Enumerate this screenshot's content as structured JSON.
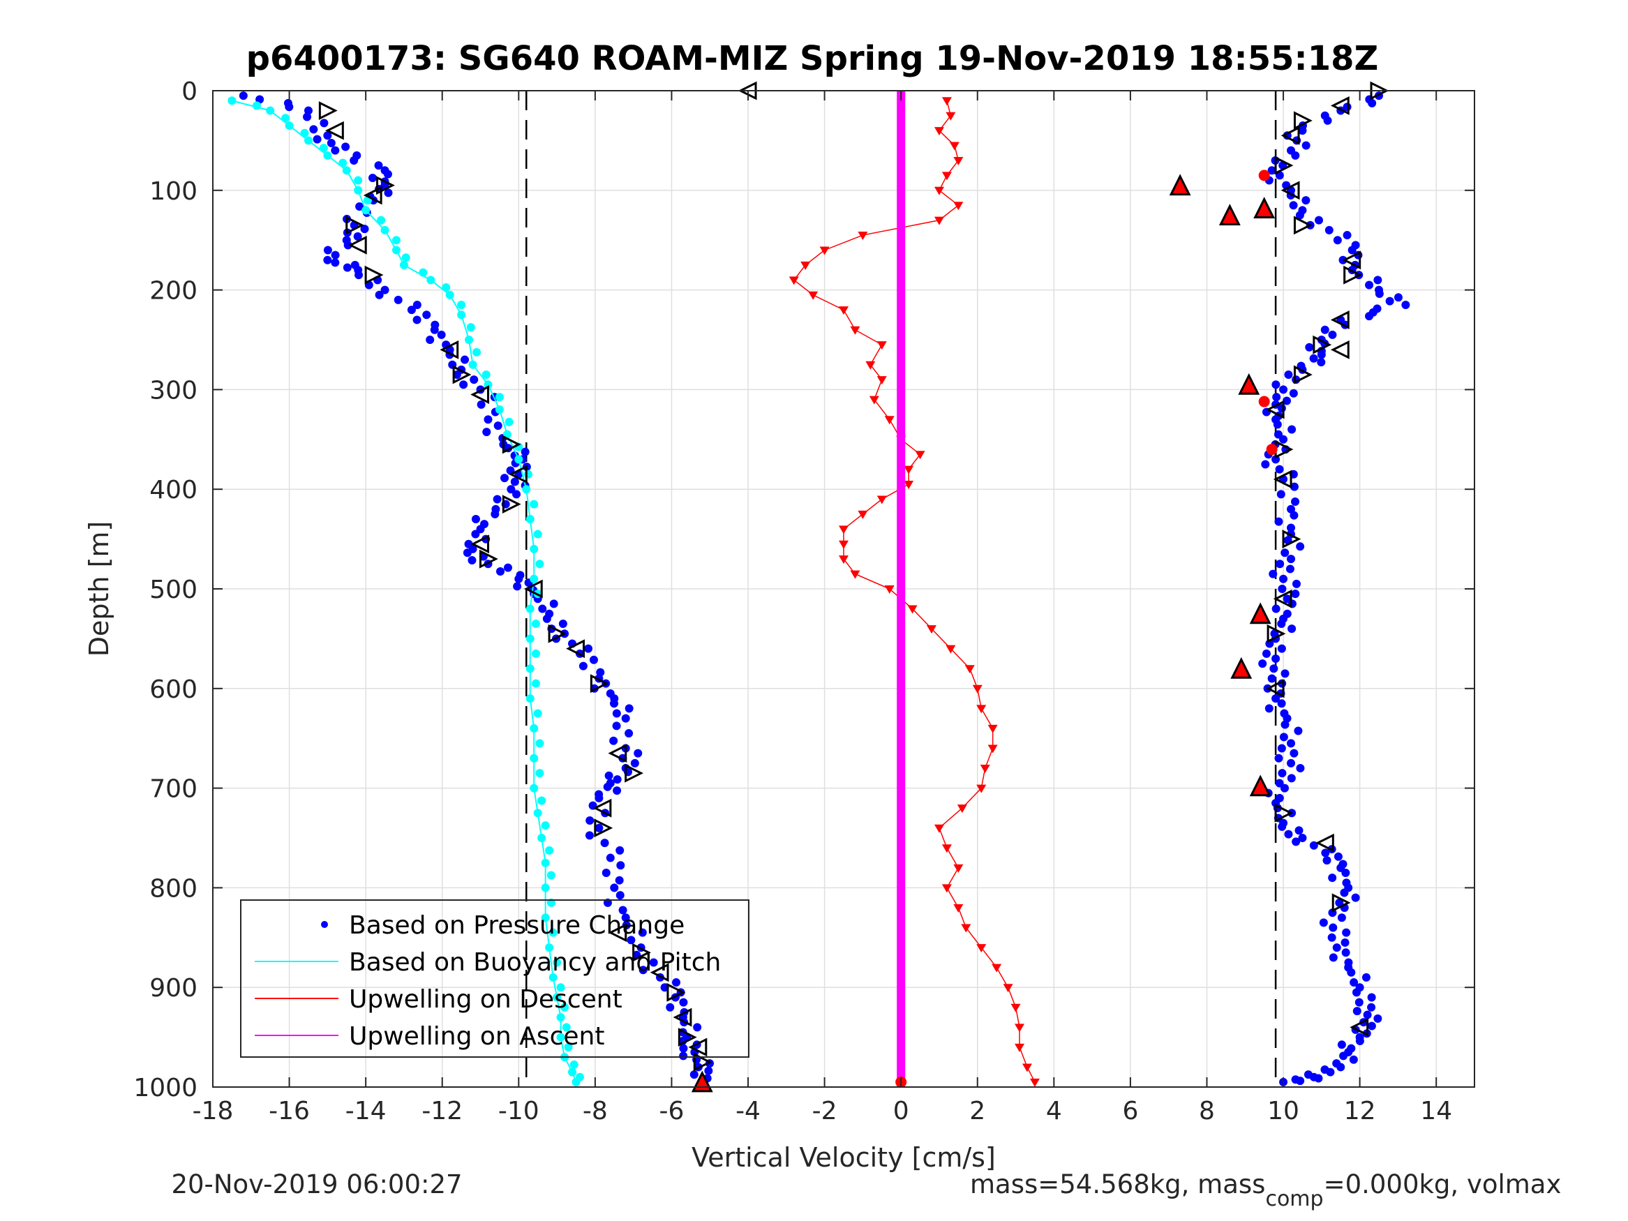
{
  "title": "p6400173: SG640 ROAM-MIZ Spring 19-Nov-2019 18:55:18Z",
  "footer": {
    "timestamp": "20-Nov-2019 06:00:27",
    "mass_prefix": "mass=54.568kg, mass",
    "mass_sub": "comp",
    "mass_suffix": "=0.000kg, volmax"
  },
  "colors": {
    "pressure": "#0000ff",
    "buoyancy": "#00ffff",
    "descent": "#ff0000",
    "ascent": "#ff00ff"
  },
  "chart_data": {
    "type": "scatter",
    "xlabel": "Vertical Velocity [cm/s]",
    "ylabel": "Depth [m]",
    "xlim": [
      -18,
      15
    ],
    "ylim": [
      0,
      1000
    ],
    "y_reversed": true,
    "grid": true,
    "xticks": [
      -18,
      -16,
      -14,
      -12,
      -10,
      -8,
      -6,
      -4,
      -2,
      0,
      2,
      4,
      6,
      8,
      10,
      12,
      14
    ],
    "yticks": [
      0,
      100,
      200,
      300,
      400,
      500,
      600,
      700,
      800,
      900,
      1000
    ],
    "reference_lines": [
      -9.8,
      9.8
    ],
    "legend": {
      "position": "bottom-left",
      "entries": [
        "Based on Pressure Change",
        "Based on Buoyancy and Pitch",
        "Upwelling on Descent",
        "Upwelling on Ascent"
      ]
    },
    "series": [
      {
        "name": "Based on Pressure Change",
        "style": "dots",
        "segments": [
          {
            "label": "descent",
            "points": [
              [
                -17.2,
                5
              ],
              [
                -15.5,
                20
              ],
              [
                -15.0,
                45
              ],
              [
                -14.8,
                60
              ],
              [
                -13.5,
                80
              ],
              [
                -13.5,
                95
              ],
              [
                -13.8,
                110
              ],
              [
                -14.3,
                135
              ],
              [
                -14.5,
                150
              ],
              [
                -15.0,
                170
              ],
              [
                -14.2,
                180
              ],
              [
                -13.5,
                200
              ],
              [
                -12.8,
                220
              ],
              [
                -12.2,
                240
              ],
              [
                -11.8,
                260
              ],
              [
                -11.5,
                280
              ],
              [
                -11.0,
                300
              ],
              [
                -10.8,
                330
              ],
              [
                -10.4,
                355
              ],
              [
                -9.9,
                370
              ],
              [
                -10.0,
                385
              ],
              [
                -10.2,
                400
              ],
              [
                -10.6,
                420
              ],
              [
                -11.0,
                440
              ],
              [
                -11.2,
                460
              ],
              [
                -10.8,
                475
              ],
              [
                -10.0,
                490
              ],
              [
                -9.6,
                505
              ],
              [
                -9.2,
                525
              ],
              [
                -8.8,
                545
              ],
              [
                -8.4,
                565
              ],
              [
                -7.9,
                590
              ],
              [
                -7.5,
                610
              ],
              [
                -7.2,
                630
              ],
              [
                -7.2,
                660
              ],
              [
                -7.2,
                680
              ],
              [
                -7.6,
                695
              ],
              [
                -7.9,
                710
              ],
              [
                -7.9,
                740
              ],
              [
                -7.6,
                770
              ],
              [
                -7.5,
                800
              ],
              [
                -7.2,
                830
              ],
              [
                -6.8,
                860
              ],
              [
                -6.3,
                890
              ],
              [
                -5.9,
                910
              ],
              [
                -5.7,
                930
              ],
              [
                -5.6,
                950
              ],
              [
                -5.4,
                965
              ],
              [
                -5.3,
                980
              ],
              [
                -5.2,
                995
              ]
            ]
          },
          {
            "label": "ascent",
            "points": [
              [
                12.5,
                5
              ],
              [
                11.5,
                20
              ],
              [
                10.5,
                40
              ],
              [
                10.2,
                60
              ],
              [
                9.7,
                80
              ],
              [
                10.2,
                100
              ],
              [
                10.5,
                120
              ],
              [
                11.2,
                140
              ],
              [
                11.8,
                160
              ],
              [
                11.8,
                180
              ],
              [
                12.5,
                200
              ],
              [
                13.2,
                215
              ],
              [
                11.5,
                230
              ],
              [
                11.0,
                250
              ],
              [
                11.0,
                265
              ],
              [
                10.5,
                280
              ],
              [
                10.0,
                300
              ],
              [
                9.8,
                315
              ],
              [
                9.8,
                330
              ],
              [
                10.0,
                350
              ],
              [
                9.8,
                370
              ],
              [
                10.0,
                390
              ],
              [
                10.2,
                420
              ],
              [
                10.2,
                445
              ],
              [
                10.2,
                470
              ],
              [
                10.0,
                490
              ],
              [
                10.1,
                510
              ],
              [
                10.0,
                530
              ],
              [
                9.8,
                550
              ],
              [
                9.8,
                570
              ],
              [
                9.7,
                590
              ],
              [
                9.8,
                610
              ],
              [
                10.1,
                630
              ],
              [
                10.2,
                655
              ],
              [
                10.2,
                675
              ],
              [
                9.9,
                695
              ],
              [
                9.8,
                715
              ],
              [
                10.0,
                735
              ],
              [
                10.5,
                750
              ],
              [
                11.1,
                765
              ],
              [
                11.5,
                780
              ],
              [
                11.7,
                800
              ],
              [
                11.6,
                820
              ],
              [
                11.3,
                840
              ],
              [
                11.4,
                860
              ],
              [
                11.7,
                880
              ],
              [
                12.0,
                900
              ],
              [
                12.3,
                920
              ],
              [
                12.1,
                935
              ],
              [
                12.0,
                950
              ],
              [
                11.7,
                965
              ],
              [
                11.5,
                980
              ],
              [
                10.8,
                990
              ],
              [
                10.0,
                995
              ]
            ]
          }
        ]
      },
      {
        "name": "Based on Buoyancy and Pitch",
        "style": "line-dots",
        "points": [
          [
            -17.5,
            10
          ],
          [
            -16.5,
            20
          ],
          [
            -16.0,
            35
          ],
          [
            -15.5,
            50
          ],
          [
            -15.0,
            65
          ],
          [
            -14.5,
            80
          ],
          [
            -14.2,
            100
          ],
          [
            -14.0,
            120
          ],
          [
            -13.5,
            140
          ],
          [
            -13.2,
            160
          ],
          [
            -13.0,
            175
          ],
          [
            -12.3,
            190
          ],
          [
            -11.8,
            205
          ],
          [
            -11.5,
            225
          ],
          [
            -11.3,
            250
          ],
          [
            -11.2,
            275
          ],
          [
            -10.8,
            295
          ],
          [
            -10.5,
            320
          ],
          [
            -10.3,
            345
          ],
          [
            -10.0,
            370
          ],
          [
            -9.8,
            400
          ],
          [
            -9.7,
            430
          ],
          [
            -9.6,
            460
          ],
          [
            -9.6,
            490
          ],
          [
            -9.7,
            520
          ],
          [
            -9.7,
            550
          ],
          [
            -9.7,
            580
          ],
          [
            -9.7,
            610
          ],
          [
            -9.6,
            640
          ],
          [
            -9.6,
            670
          ],
          [
            -9.6,
            700
          ],
          [
            -9.5,
            725
          ],
          [
            -9.4,
            750
          ],
          [
            -9.3,
            775
          ],
          [
            -9.3,
            800
          ],
          [
            -9.3,
            830
          ],
          [
            -9.2,
            860
          ],
          [
            -9.1,
            890
          ],
          [
            -9.0,
            910
          ],
          [
            -8.9,
            930
          ],
          [
            -8.9,
            950
          ],
          [
            -8.8,
            970
          ],
          [
            -8.6,
            985
          ],
          [
            -8.5,
            995
          ]
        ]
      },
      {
        "name": "Upwelling on Descent",
        "style": "triangles",
        "points": [
          [
            1.2,
            10
          ],
          [
            1.3,
            25
          ],
          [
            1.0,
            40
          ],
          [
            1.4,
            55
          ],
          [
            1.5,
            70
          ],
          [
            1.2,
            85
          ],
          [
            1.0,
            100
          ],
          [
            1.5,
            115
          ],
          [
            1.0,
            130
          ],
          [
            -1.0,
            145
          ],
          [
            -2.0,
            160
          ],
          [
            -2.5,
            175
          ],
          [
            -2.8,
            190
          ],
          [
            -2.3,
            205
          ],
          [
            -1.5,
            220
          ],
          [
            -1.2,
            240
          ],
          [
            -0.5,
            255
          ],
          [
            -0.8,
            275
          ],
          [
            -0.5,
            290
          ],
          [
            -0.7,
            310
          ],
          [
            -0.3,
            330
          ],
          [
            0.0,
            350
          ],
          [
            0.5,
            365
          ],
          [
            0.2,
            380
          ],
          [
            0.2,
            395
          ],
          [
            -0.5,
            410
          ],
          [
            -1.0,
            425
          ],
          [
            -1.5,
            440
          ],
          [
            -1.5,
            455
          ],
          [
            -1.5,
            470
          ],
          [
            -1.2,
            485
          ],
          [
            -0.3,
            500
          ],
          [
            0.3,
            520
          ],
          [
            0.8,
            540
          ],
          [
            1.3,
            560
          ],
          [
            1.8,
            580
          ],
          [
            2.0,
            600
          ],
          [
            2.1,
            620
          ],
          [
            2.4,
            640
          ],
          [
            2.4,
            660
          ],
          [
            2.2,
            680
          ],
          [
            2.1,
            700
          ],
          [
            1.6,
            720
          ],
          [
            1.0,
            740
          ],
          [
            1.2,
            760
          ],
          [
            1.5,
            780
          ],
          [
            1.2,
            800
          ],
          [
            1.5,
            820
          ],
          [
            1.7,
            840
          ],
          [
            2.1,
            860
          ],
          [
            2.5,
            880
          ],
          [
            2.8,
            900
          ],
          [
            3.0,
            920
          ],
          [
            3.1,
            940
          ],
          [
            3.1,
            960
          ],
          [
            3.3,
            980
          ],
          [
            3.5,
            995
          ]
        ]
      },
      {
        "name": "Upwelling on Ascent",
        "style": "thick-line",
        "points": [
          [
            0,
            0
          ],
          [
            0,
            1000
          ]
        ]
      }
    ],
    "dive_markers": [
      [
        -15.0,
        20
      ],
      [
        -14.8,
        40
      ],
      [
        -13.5,
        95
      ],
      [
        -13.8,
        105
      ],
      [
        -14.3,
        135
      ],
      [
        -14.2,
        155
      ],
      [
        -13.8,
        185
      ],
      [
        -11.8,
        260
      ],
      [
        -11.5,
        285
      ],
      [
        -11.0,
        305
      ],
      [
        -10.2,
        355
      ],
      [
        -10.0,
        385
      ],
      [
        -10.2,
        415
      ],
      [
        -11.0,
        455
      ],
      [
        -10.8,
        470
      ],
      [
        -9.6,
        500
      ],
      [
        -9.0,
        545
      ],
      [
        -8.5,
        560
      ],
      [
        -7.9,
        595
      ],
      [
        -7.4,
        665
      ],
      [
        -7.0,
        685
      ],
      [
        -7.8,
        720
      ],
      [
        -7.8,
        740
      ],
      [
        -7.4,
        845
      ],
      [
        -6.8,
        865
      ],
      [
        -6.3,
        885
      ],
      [
        -5.9,
        905
      ],
      [
        -5.7,
        930
      ],
      [
        -5.6,
        950
      ],
      [
        -5.3,
        960
      ],
      [
        -5.2,
        975
      ],
      [
        -4.0,
        0
      ],
      [
        12.5,
        0
      ],
      [
        11.5,
        15
      ],
      [
        10.5,
        30
      ],
      [
        10.2,
        45
      ],
      [
        10.0,
        75
      ],
      [
        10.2,
        100
      ],
      [
        10.5,
        135
      ],
      [
        11.8,
        170
      ],
      [
        11.8,
        185
      ],
      [
        11.5,
        230
      ],
      [
        11.0,
        255
      ],
      [
        11.5,
        260
      ],
      [
        10.5,
        285
      ],
      [
        9.8,
        320
      ],
      [
        10.0,
        360
      ],
      [
        10.0,
        390
      ],
      [
        10.2,
        450
      ],
      [
        10.0,
        510
      ],
      [
        9.8,
        545
      ],
      [
        9.8,
        600
      ],
      [
        10.0,
        725
      ],
      [
        11.1,
        755
      ],
      [
        11.5,
        815
      ],
      [
        12.0,
        940
      ]
    ],
    "event_markers": [
      [
        7.3,
        95
      ],
      [
        8.6,
        125
      ],
      [
        9.5,
        85
      ],
      [
        9.5,
        118
      ],
      [
        9.1,
        295
      ],
      [
        9.5,
        312
      ],
      [
        9.4,
        525
      ],
      [
        8.9,
        580
      ],
      [
        9.7,
        360
      ],
      [
        9.4,
        698
      ],
      [
        -5.2,
        995
      ],
      [
        0,
        995
      ]
    ]
  }
}
